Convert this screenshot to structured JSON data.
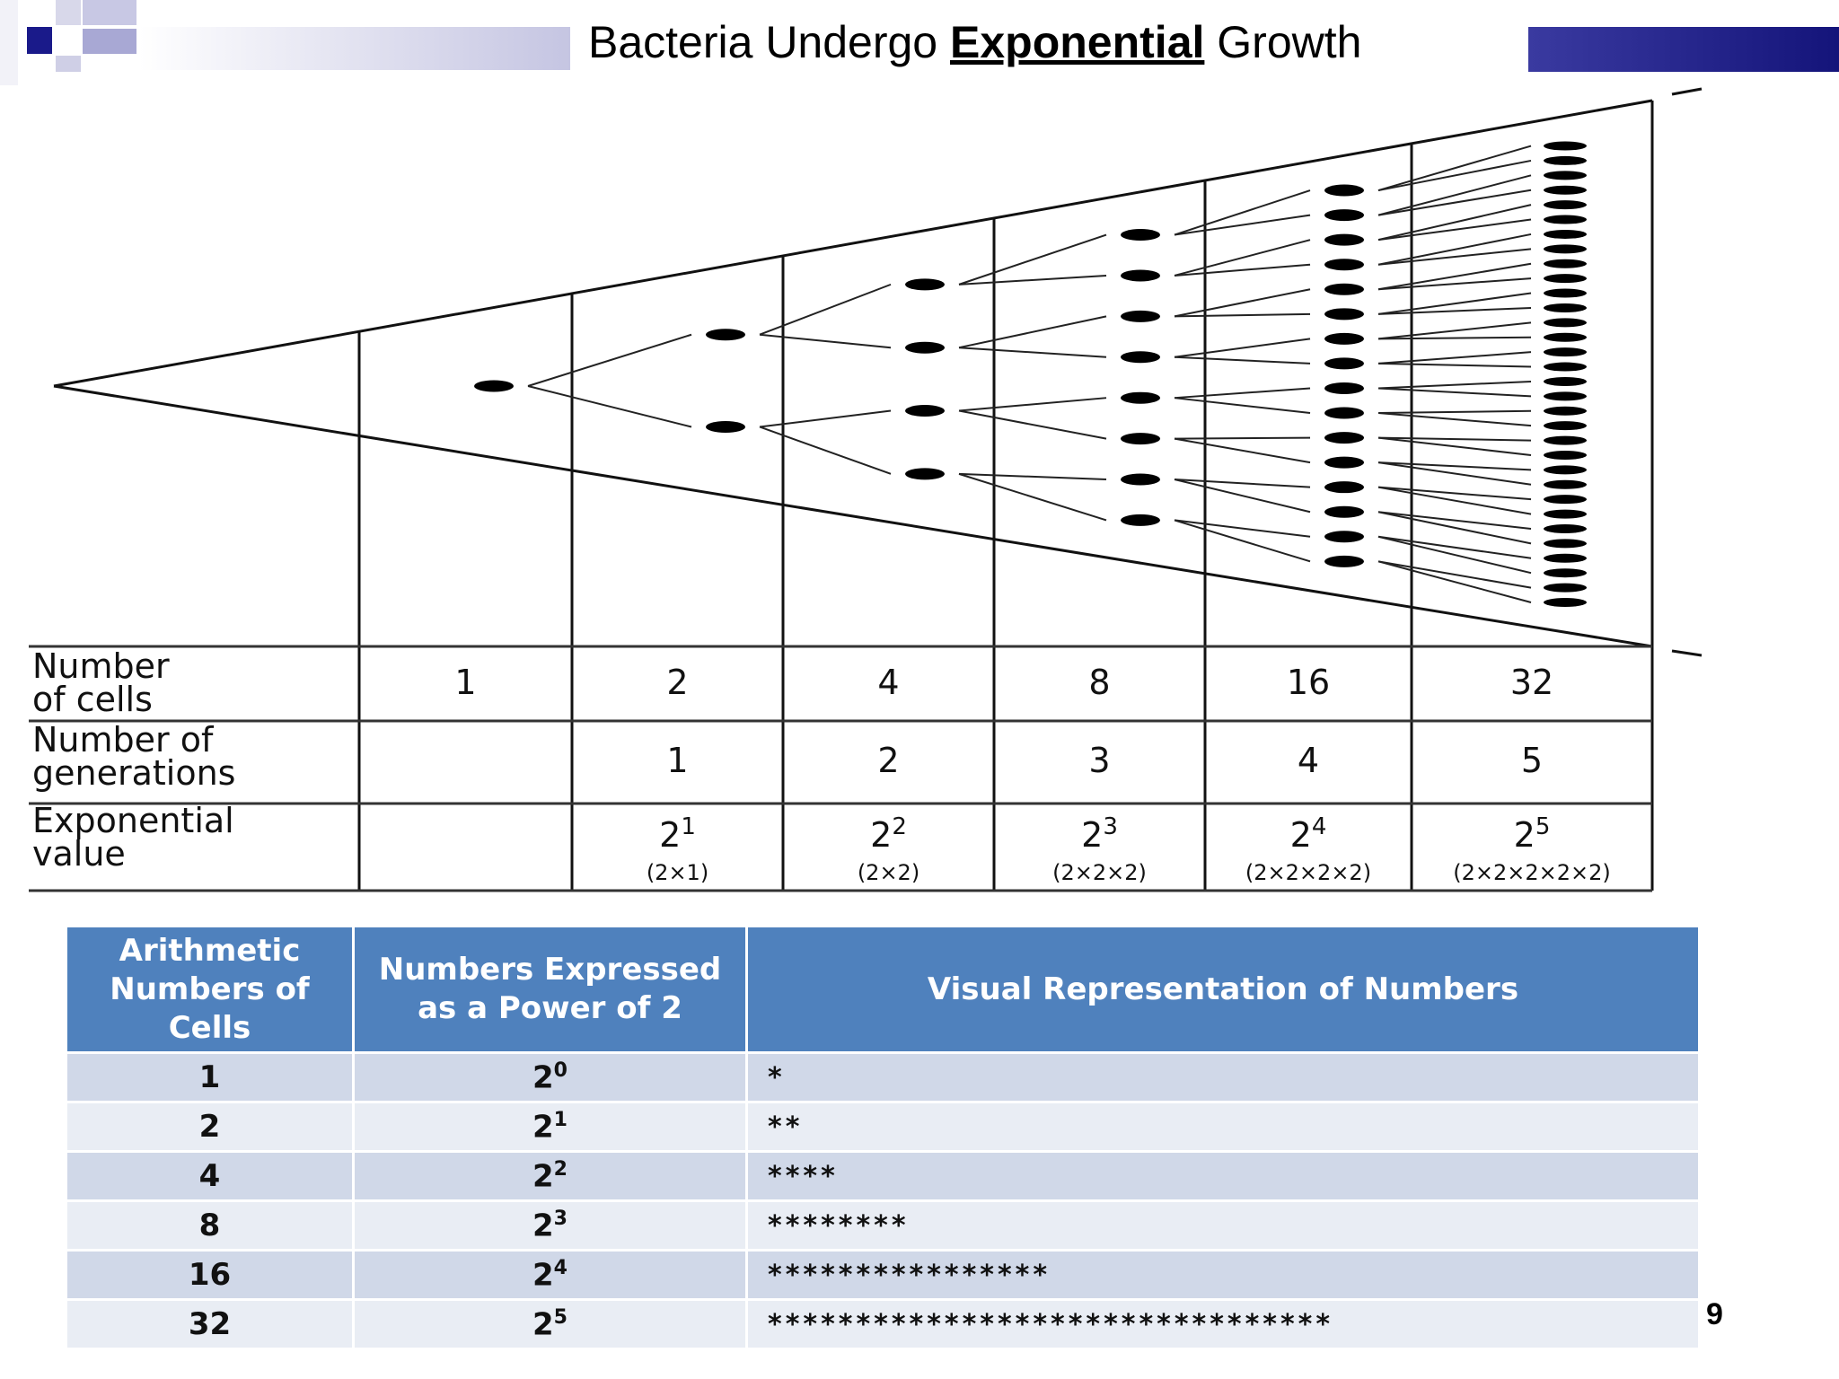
{
  "header": {
    "title_before": "Bacteria Undergo ",
    "title_emphasis": "Exponential",
    "title_after": " Growth"
  },
  "diagram": {
    "row_labels": [
      [
        "Number",
        "of cells"
      ],
      [
        "Number of",
        "generations"
      ],
      [
        "Exponential",
        "value"
      ]
    ],
    "cells": [
      "1",
      "2",
      "4",
      "8",
      "16",
      "32"
    ],
    "generations": [
      "",
      "1",
      "2",
      "3",
      "4",
      "5"
    ],
    "exponent_base": [
      "",
      "2",
      "2",
      "2",
      "2",
      "2"
    ],
    "exponent_power": [
      "",
      "1",
      "2",
      "3",
      "4",
      "5"
    ],
    "expansions": [
      "",
      "(2×1)",
      "(2×2)",
      "(2×2×2)",
      "(2×2×2×2)",
      "(2×2×2×2×2)"
    ]
  },
  "table": {
    "headers": [
      "Arithmetic Numbers of Cells",
      "Numbers Expressed as a Power of 2",
      "Visual Representation of Numbers"
    ],
    "rows": [
      {
        "cells": "1",
        "base": "2",
        "power": "0",
        "visual": "*"
      },
      {
        "cells": "2",
        "base": "2",
        "power": "1",
        "visual": "**"
      },
      {
        "cells": "4",
        "base": "2",
        "power": "2",
        "visual": "****"
      },
      {
        "cells": "8",
        "base": "2",
        "power": "3",
        "visual": "********"
      },
      {
        "cells": "16",
        "base": "2",
        "power": "4",
        "visual": "****************"
      },
      {
        "cells": "32",
        "base": "2",
        "power": "5",
        "visual": "********************************"
      }
    ]
  },
  "footer": {
    "page_number": "9"
  },
  "colors": {
    "header_dark": "#1f1f8c",
    "header_light": "#c9c9e4",
    "table_header": "#4f81bd",
    "row_odd": "#d0d8e8",
    "row_even": "#e9edf4"
  }
}
